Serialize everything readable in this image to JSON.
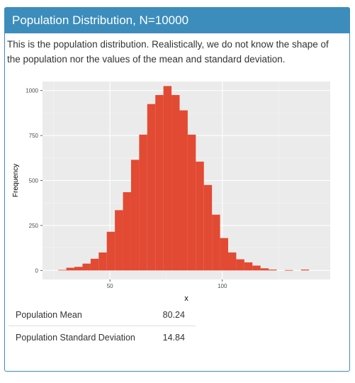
{
  "panel": {
    "title": "Population Distribution, N=10000",
    "description": "This is the population distribution. Realistically, we do not know the shape of the population nor the values of the mean and standard deviation.",
    "header_color": "#3c8dbc"
  },
  "chart_data": {
    "type": "bar",
    "xlabel": "x",
    "ylabel": "Frequency",
    "xlim": [
      20,
      148
    ],
    "ylim": [
      -50,
      1050
    ],
    "xticks": [
      50,
      100
    ],
    "yticks": [
      0,
      250,
      500,
      750,
      1000
    ],
    "bar_color": "#e24a33",
    "panel_bg": "#ebebeb",
    "grid": true,
    "bin_width": 3.6,
    "bins_left": [
      27,
      30.6,
      34.2,
      37.8,
      41.4,
      45,
      48.6,
      52.2,
      55.8,
      59.4,
      63,
      66.6,
      70.2,
      73.8,
      77.4,
      81,
      84.6,
      88.2,
      91.8,
      95.4,
      99,
      102.6,
      106.2,
      109.8,
      113.4,
      117,
      120.6,
      124.2,
      127.8,
      131.4,
      135
    ],
    "values": [
      3,
      15,
      20,
      38,
      65,
      100,
      215,
      335,
      435,
      615,
      755,
      925,
      975,
      1025,
      975,
      890,
      755,
      605,
      475,
      310,
      180,
      100,
      62,
      45,
      27,
      12,
      5,
      0,
      2,
      0,
      5
    ]
  },
  "stats": [
    {
      "label": "Population Mean",
      "value": "80.24"
    },
    {
      "label": "Population Standard Deviation",
      "value": "14.84"
    }
  ]
}
